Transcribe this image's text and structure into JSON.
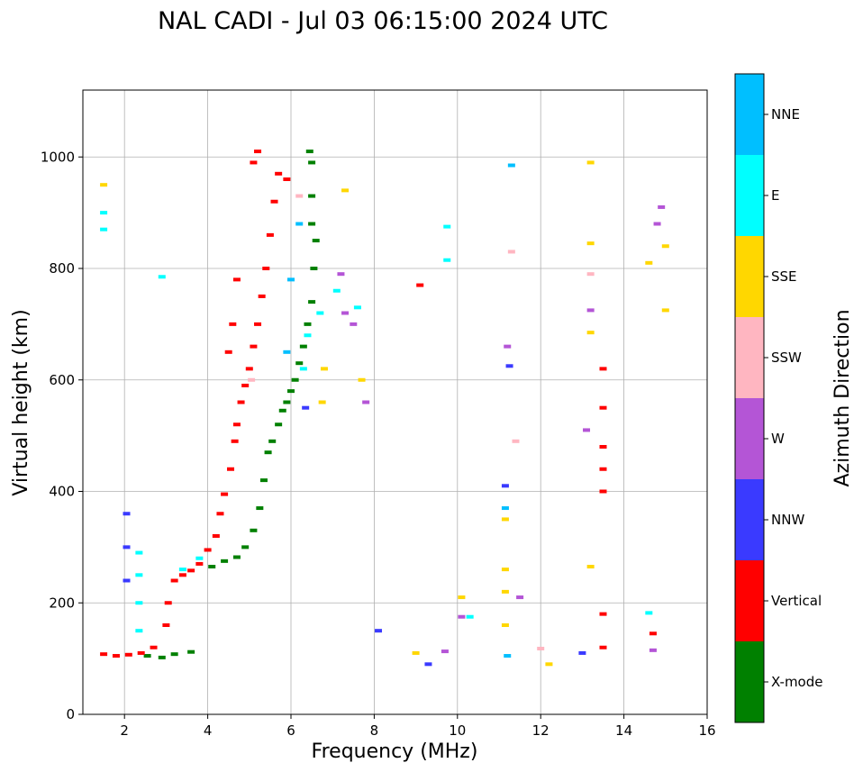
{
  "chart_data": {
    "type": "scatter",
    "title": "NAL CADI - Jul 03 06:15:00 2024 UTC",
    "xlabel": "Frequency (MHz)",
    "ylabel": "Virtual height (km)",
    "xlim": [
      1,
      16
    ],
    "ylim": [
      0,
      1120
    ],
    "xticks": [
      2,
      4,
      6,
      8,
      10,
      12,
      14,
      16
    ],
    "yticks": [
      0,
      200,
      400,
      600,
      800,
      1000
    ],
    "grid": true,
    "colorbar": {
      "label": "Azimuth Direction",
      "categories": [
        {
          "name": "X-mode",
          "color": "#008000"
        },
        {
          "name": "Vertical",
          "color": "#ff0000"
        },
        {
          "name": "NNW",
          "color": "#3a3aff"
        },
        {
          "name": "W",
          "color": "#b455d6"
        },
        {
          "name": "SSW",
          "color": "#ffb6c1"
        },
        {
          "name": "SSE",
          "color": "#ffd700"
        },
        {
          "name": "E",
          "color": "#00ffff"
        },
        {
          "name": "NNE",
          "color": "#00bfff"
        }
      ]
    },
    "series": [
      {
        "name": "X-mode",
        "points": [
          [
            2.55,
            105
          ],
          [
            2.9,
            102
          ],
          [
            3.2,
            108
          ],
          [
            3.6,
            112
          ],
          [
            4.1,
            265
          ],
          [
            4.4,
            275
          ],
          [
            4.7,
            282
          ],
          [
            4.9,
            300
          ],
          [
            5.1,
            330
          ],
          [
            5.25,
            370
          ],
          [
            5.35,
            420
          ],
          [
            5.45,
            470
          ],
          [
            5.55,
            490
          ],
          [
            5.7,
            520
          ],
          [
            5.8,
            545
          ],
          [
            5.9,
            560
          ],
          [
            6.0,
            580
          ],
          [
            6.1,
            600
          ],
          [
            6.2,
            630
          ],
          [
            6.3,
            660
          ],
          [
            6.4,
            700
          ],
          [
            6.5,
            740
          ],
          [
            6.55,
            800
          ],
          [
            6.6,
            850
          ],
          [
            6.5,
            880
          ],
          [
            6.5,
            930
          ],
          [
            6.5,
            990
          ],
          [
            6.45,
            1010
          ]
        ]
      },
      {
        "name": "Vertical",
        "points": [
          [
            1.5,
            108
          ],
          [
            1.8,
            105
          ],
          [
            2.1,
            107
          ],
          [
            2.4,
            110
          ],
          [
            2.7,
            120
          ],
          [
            3.0,
            160
          ],
          [
            3.05,
            200
          ],
          [
            3.2,
            240
          ],
          [
            3.4,
            250
          ],
          [
            3.6,
            258
          ],
          [
            3.8,
            270
          ],
          [
            4.0,
            295
          ],
          [
            4.2,
            320
          ],
          [
            4.3,
            360
          ],
          [
            4.4,
            395
          ],
          [
            4.55,
            440
          ],
          [
            4.65,
            490
          ],
          [
            4.7,
            520
          ],
          [
            4.8,
            560
          ],
          [
            4.9,
            590
          ],
          [
            5.0,
            620
          ],
          [
            5.1,
            660
          ],
          [
            5.2,
            700
          ],
          [
            5.3,
            750
          ],
          [
            5.4,
            800
          ],
          [
            5.5,
            860
          ],
          [
            5.6,
            920
          ],
          [
            5.7,
            970
          ],
          [
            5.2,
            1010
          ],
          [
            5.1,
            990
          ],
          [
            4.5,
            650
          ],
          [
            4.6,
            700
          ],
          [
            4.7,
            780
          ],
          [
            5.9,
            960
          ],
          [
            9.1,
            770
          ],
          [
            13.5,
            120
          ],
          [
            13.5,
            180
          ],
          [
            13.5,
            400
          ],
          [
            13.5,
            440
          ],
          [
            13.5,
            480
          ],
          [
            13.5,
            550
          ],
          [
            13.5,
            620
          ],
          [
            14.7,
            145
          ]
        ]
      },
      {
        "name": "NNW",
        "points": [
          [
            2.05,
            240
          ],
          [
            2.05,
            300
          ],
          [
            2.05,
            360
          ],
          [
            6.35,
            550
          ],
          [
            9.3,
            90
          ],
          [
            11.15,
            410
          ],
          [
            11.25,
            625
          ],
          [
            13.0,
            110
          ],
          [
            8.1,
            150
          ]
        ]
      },
      {
        "name": "W",
        "points": [
          [
            7.2,
            790
          ],
          [
            7.3,
            720
          ],
          [
            7.5,
            700
          ],
          [
            7.8,
            560
          ],
          [
            9.7,
            113
          ],
          [
            10.1,
            175
          ],
          [
            11.2,
            660
          ],
          [
            11.5,
            210
          ],
          [
            13.1,
            510
          ],
          [
            13.2,
            725
          ],
          [
            14.8,
            880
          ],
          [
            14.9,
            910
          ],
          [
            14.7,
            115
          ]
        ]
      },
      {
        "name": "SSW",
        "points": [
          [
            6.2,
            930
          ],
          [
            5.05,
            600
          ],
          [
            11.3,
            830
          ],
          [
            11.4,
            490
          ],
          [
            13.2,
            790
          ],
          [
            12.0,
            118
          ]
        ]
      },
      {
        "name": "SSE",
        "points": [
          [
            1.5,
            950
          ],
          [
            6.8,
            620
          ],
          [
            6.75,
            560
          ],
          [
            7.3,
            940
          ],
          [
            7.7,
            600
          ],
          [
            9.0,
            110
          ],
          [
            10.1,
            210
          ],
          [
            11.15,
            160
          ],
          [
            11.15,
            220
          ],
          [
            11.15,
            260
          ],
          [
            11.15,
            350
          ],
          [
            12.2,
            90
          ],
          [
            13.2,
            990
          ],
          [
            13.2,
            845
          ],
          [
            13.2,
            685
          ],
          [
            13.2,
            265
          ],
          [
            14.6,
            810
          ],
          [
            15.0,
            840
          ],
          [
            15.0,
            725
          ]
        ]
      },
      {
        "name": "E",
        "points": [
          [
            1.5,
            870
          ],
          [
            1.5,
            900
          ],
          [
            2.35,
            150
          ],
          [
            2.35,
            200
          ],
          [
            2.35,
            250
          ],
          [
            2.35,
            290
          ],
          [
            2.9,
            785
          ],
          [
            3.4,
            260
          ],
          [
            3.8,
            280
          ],
          [
            6.3,
            620
          ],
          [
            6.4,
            680
          ],
          [
            6.7,
            720
          ],
          [
            7.1,
            760
          ],
          [
            7.6,
            730
          ],
          [
            9.75,
            875
          ],
          [
            9.75,
            815
          ],
          [
            10.3,
            175
          ],
          [
            14.6,
            182
          ]
        ]
      },
      {
        "name": "NNE",
        "points": [
          [
            6.2,
            880
          ],
          [
            6.0,
            780
          ],
          [
            5.9,
            650
          ],
          [
            11.3,
            985
          ],
          [
            11.2,
            105
          ],
          [
            11.15,
            370
          ]
        ]
      }
    ]
  }
}
